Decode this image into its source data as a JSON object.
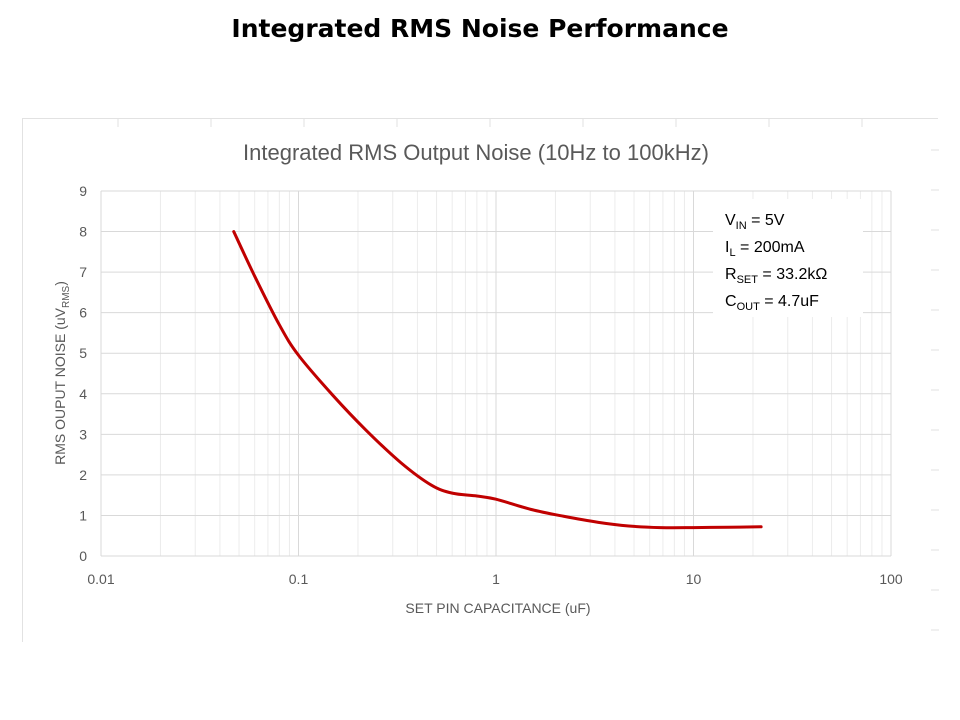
{
  "slide": {
    "title": "Integrated RMS Noise Performance"
  },
  "chart_data": {
    "type": "line",
    "title": "Integrated RMS Output Noise (10Hz to 100kHz)",
    "xlabel": "SET PIN CAPACITANCE (uF)",
    "ylabel": "RMS OUPUT NOISE (uV",
    "ylabel_sub": "RMS",
    "ylabel_end": ")",
    "xscale": "log",
    "xlim": [
      0.01,
      100
    ],
    "ylim": [
      0,
      9
    ],
    "xticks": [
      "0.01",
      "0.1",
      "1",
      "10",
      "100"
    ],
    "yticks": [
      "0",
      "1",
      "2",
      "3",
      "4",
      "5",
      "6",
      "7",
      "8",
      "9"
    ],
    "grid": true,
    "legend": "none",
    "series": [
      {
        "color": "#c00000",
        "x": [
          0.047,
          0.06,
          0.08,
          0.1,
          0.15,
          0.22,
          0.33,
          0.47,
          0.6,
          0.8,
          1.0,
          1.5,
          2.2,
          3.3,
          4.7,
          6.8,
          10,
          15,
          22
        ],
        "y": [
          8.0,
          6.9,
          5.7,
          4.95,
          3.95,
          3.1,
          2.3,
          1.75,
          1.55,
          1.48,
          1.4,
          1.15,
          0.98,
          0.83,
          0.74,
          0.7,
          0.7,
          0.71,
          0.72
        ]
      }
    ],
    "annotation": {
      "lines": [
        {
          "main": "V",
          "sub": "IN",
          "rest": " = 5V"
        },
        {
          "main": "I",
          "sub": "L",
          "rest": " = 200mA"
        },
        {
          "main": "R",
          "sub": "SET",
          "rest": " = 33.2kΩ"
        },
        {
          "main": "C",
          "sub": "OUT",
          "rest": " = 4.7uF"
        }
      ]
    }
  }
}
